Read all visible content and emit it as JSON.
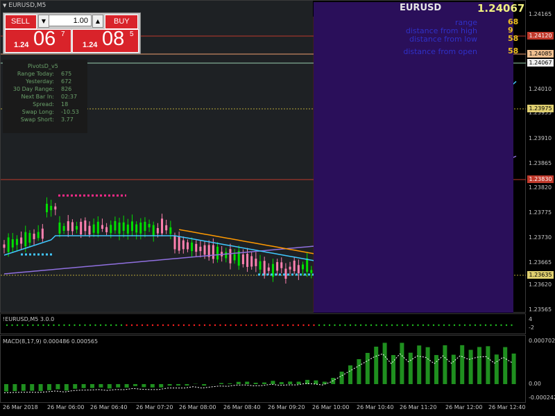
{
  "chart": {
    "symbol_title": "EURUSD,M5",
    "symbol": "EURUSD",
    "price": "1.24067"
  },
  "trade_panel": {
    "sell_label": "SELL",
    "buy_label": "BUY",
    "lot_value": "1.00",
    "sell_prefix": "1.24",
    "sell_big": "06",
    "sell_sup": "7",
    "buy_prefix": "1.24",
    "buy_big": "08",
    "buy_sup": "5"
  },
  "info_panel": [
    {
      "label": "range",
      "value": "68"
    },
    {
      "label": "distance from high",
      "value": "9"
    },
    {
      "label": "distance from low",
      "value": "58"
    },
    {
      "label": "distance from open",
      "value": "58"
    }
  ],
  "pivots_panel": {
    "title": "PivotsD_v5",
    "rows": [
      {
        "label": "Range  Today:",
        "value": "675"
      },
      {
        "label": "Yesterday:",
        "value": "672"
      },
      {
        "label": "30 Day Range:",
        "value": "826"
      },
      {
        "label": "Next Bar In:",
        "value": "02:37"
      },
      {
        "label": "Spread:",
        "value": "18"
      },
      {
        "label": "Swap  Long:",
        "value": "-10.53"
      },
      {
        "label": "Swap  Short:",
        "value": "3.77"
      }
    ]
  },
  "price_axis": [
    "1.24165",
    "1.24120",
    "1.24085",
    "1.24067",
    "1.24010",
    "1.23975",
    "1.23955",
    "1.23910",
    "1.23865",
    "1.23830",
    "1.23820",
    "1.23775",
    "1.23730",
    "1.23665",
    "1.23635",
    "1.23620",
    "1.23565"
  ],
  "price_tags": [
    {
      "value": "1.24120",
      "bg": "#c0392b",
      "color": "#ffffff"
    },
    {
      "value": "1.24085",
      "bg": "#f0c090",
      "color": "#000000"
    },
    {
      "value": "1.24067",
      "bg": "#f0f0f0",
      "color": "#000000"
    },
    {
      "value": "1.23975",
      "bg": "#e0d070",
      "color": "#000000"
    },
    {
      "value": "1.23830",
      "bg": "#c0392b",
      "color": "#ffffff"
    },
    {
      "value": "1.23635",
      "bg": "#e0d070",
      "color": "#000000"
    }
  ],
  "sub1": {
    "title": "!EURUSD,M5 3.0.0",
    "axis": [
      "4",
      "-2"
    ]
  },
  "macd": {
    "title": "MACD(8,17,9) 0.000486 0.000565",
    "axis": [
      "0.000702",
      "0.00",
      "-0.000242"
    ]
  },
  "time_axis": [
    "26 Mar 2018",
    "26 Mar 06:00",
    "26 Mar 06:40",
    "26 Mar 07:20",
    "26 Mar 08:00",
    "26 Mar 08:40",
    "26 Mar 09:20",
    "26 Mar 10:00",
    "26 Mar 10:40",
    "26 Mar 11:20",
    "26 Mar 12:00",
    "26 Mar 12:40"
  ],
  "colors": {
    "bull": "#00e000",
    "bear": "#ff80b0",
    "ma_fast": "#40c8ff",
    "ma_slow": "#9070e0",
    "ma_mid": "#ff9900",
    "macd_hist": "#1f8f1f",
    "sell_red": "#d9232a"
  }
}
